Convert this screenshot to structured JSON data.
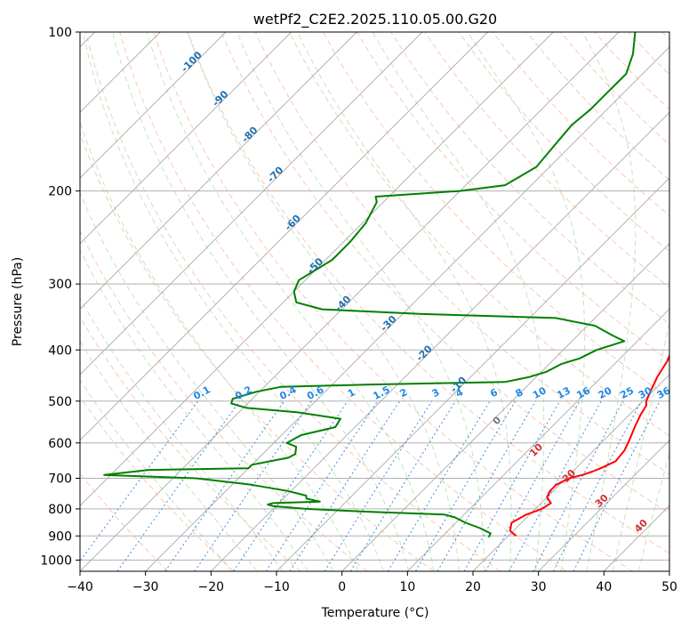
{
  "chart_data": {
    "type": "line",
    "title": "wetPf2_C2E2.2025.110.05.00.G20",
    "xlabel": "Temperature (°C)",
    "ylabel": "Pressure (hPa)",
    "xlim": [
      -40,
      50
    ],
    "ylim": [
      1050,
      100
    ],
    "y_scale": "log",
    "x_ticks": [
      -40,
      -30,
      -20,
      -10,
      0,
      10,
      20,
      30,
      40,
      50
    ],
    "y_ticks": [
      100,
      200,
      300,
      400,
      500,
      600,
      700,
      800,
      900,
      1000
    ],
    "grid": true,
    "skew_degrees": 45,
    "series": [
      {
        "color": "#ff0000",
        "points": [
          [
            900,
            21.2
          ],
          [
            880,
            19.5
          ],
          [
            850,
            18.5
          ],
          [
            820,
            19.5
          ],
          [
            800,
            21.0
          ],
          [
            780,
            21.5
          ],
          [
            760,
            20.0
          ],
          [
            740,
            19.5
          ],
          [
            720,
            19.5
          ],
          [
            700,
            20.5
          ],
          [
            690,
            22.0
          ],
          [
            680,
            23.0
          ],
          [
            670,
            23.8
          ],
          [
            650,
            25.0
          ],
          [
            620,
            24.7
          ],
          [
            590,
            23.8
          ],
          [
            560,
            22.7
          ],
          [
            530,
            21.7
          ],
          [
            510,
            21.2
          ],
          [
            500,
            20.5
          ],
          [
            480,
            19.7
          ],
          [
            450,
            18.5
          ],
          [
            420,
            17.6
          ],
          [
            400,
            16.6
          ],
          [
            380,
            14.6
          ],
          [
            360,
            13.1
          ],
          [
            345,
            12.4
          ],
          [
            330,
            12.9
          ],
          [
            300,
            13.5
          ],
          [
            270,
            11.3
          ],
          [
            250,
            9.3
          ],
          [
            230,
            6.8
          ],
          [
            200,
            3.0
          ],
          [
            180,
            0.5
          ],
          [
            160,
            -2.0
          ],
          [
            140,
            -5.0
          ],
          [
            120,
            -8.0
          ],
          [
            100,
            -12.5
          ]
        ]
      },
      {
        "color": "#008000",
        "points": [
          [
            905,
            17.2
          ],
          [
            890,
            16.9
          ],
          [
            870,
            14.5
          ],
          [
            850,
            11.5
          ],
          [
            830,
            9.0
          ],
          [
            820,
            7.0
          ],
          [
            810,
            -5.0
          ],
          [
            800,
            -15.0
          ],
          [
            790,
            -20.5
          ],
          [
            785,
            -21.5
          ],
          [
            780,
            -21.0
          ],
          [
            775,
            -14.0
          ],
          [
            765,
            -16.5
          ],
          [
            755,
            -17.0
          ],
          [
            740,
            -20.5
          ],
          [
            720,
            -27.0
          ],
          [
            700,
            -36.5
          ],
          [
            690,
            -51.0
          ],
          [
            675,
            -45.0
          ],
          [
            670,
            -30.0
          ],
          [
            660,
            -30.0
          ],
          [
            640,
            -25.5
          ],
          [
            630,
            -25.0
          ],
          [
            610,
            -26.0
          ],
          [
            600,
            -28.0
          ],
          [
            580,
            -27.0
          ],
          [
            560,
            -23.0
          ],
          [
            540,
            -23.5
          ],
          [
            525,
            -31.0
          ],
          [
            515,
            -39.5
          ],
          [
            505,
            -42.5
          ],
          [
            495,
            -43.0
          ],
          [
            480,
            -40.5
          ],
          [
            470,
            -37.5
          ],
          [
            465,
            -24.0
          ],
          [
            460,
            -4.0
          ],
          [
            450,
            -1.0
          ],
          [
            440,
            0.8
          ],
          [
            425,
            1.9
          ],
          [
            415,
            3.8
          ],
          [
            400,
            5.1
          ],
          [
            385,
            8.0
          ],
          [
            375,
            5.2
          ],
          [
            360,
            1.2
          ],
          [
            348,
            -6.0
          ],
          [
            342,
            -27.0
          ],
          [
            335,
            -43.0
          ],
          [
            325,
            -48.0
          ],
          [
            310,
            -50.0
          ],
          [
            295,
            -51.0
          ],
          [
            270,
            -49.0
          ],
          [
            250,
            -49.0
          ],
          [
            230,
            -49.5
          ],
          [
            210,
            -51.0
          ],
          [
            205,
            -52.0
          ],
          [
            200,
            -40.0
          ],
          [
            195,
            -34.0
          ],
          [
            180,
            -32.0
          ],
          [
            165,
            -32.5
          ],
          [
            150,
            -33.0
          ],
          [
            140,
            -32.5
          ],
          [
            130,
            -32.5
          ],
          [
            120,
            -32.5
          ],
          [
            110,
            -34.5
          ],
          [
            100,
            -37.5
          ]
        ]
      }
    ],
    "dry_adiabat_labels": [
      "-100",
      "-90",
      "-80",
      "-70",
      "-60",
      "-50",
      "-40",
      "-30",
      "-20",
      "-10"
    ],
    "mixing_ratio_labels": [
      "0.1",
      "0.2",
      "0.4",
      "0.6",
      "1",
      "1.5",
      "2",
      "3",
      "4",
      "6",
      "8",
      "10",
      "13",
      "16",
      "20",
      "25",
      "30",
      "36"
    ],
    "moist_adiabat_labels": [
      "0",
      "10",
      "20",
      "30",
      "40"
    ]
  }
}
